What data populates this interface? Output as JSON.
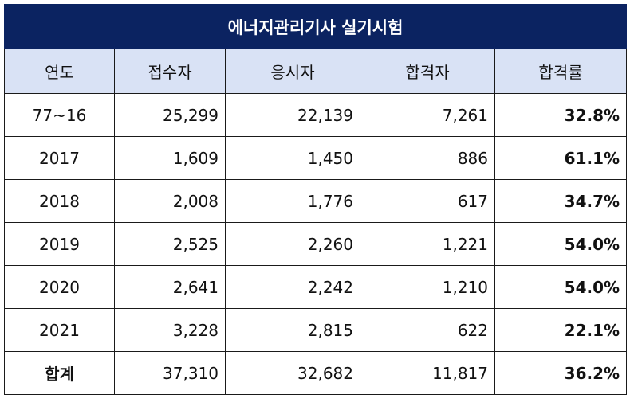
{
  "table": {
    "title": "에너지관리기사 실기시험",
    "headers": [
      "연도",
      "접수자",
      "응시자",
      "합격자",
      "합격률"
    ],
    "rows": [
      [
        "77~16",
        "25,299",
        "22,139",
        "7,261",
        "32.8%"
      ],
      [
        "2017",
        "1,609",
        "1,450",
        "886",
        "61.1%"
      ],
      [
        "2018",
        "2,008",
        "1,776",
        "617",
        "34.7%"
      ],
      [
        "2019",
        "2,525",
        "2,260",
        "1,221",
        "54.0%"
      ],
      [
        "2020",
        "2,641",
        "2,242",
        "1,210",
        "54.0%"
      ],
      [
        "2021",
        "3,228",
        "2,815",
        "622",
        "22.1%"
      ],
      [
        "합계",
        "37,310",
        "32,682",
        "11,817",
        "36.2%"
      ]
    ]
  },
  "colors": {
    "title_bg": "#0b2361",
    "header_bg": "#d9e2f5"
  }
}
